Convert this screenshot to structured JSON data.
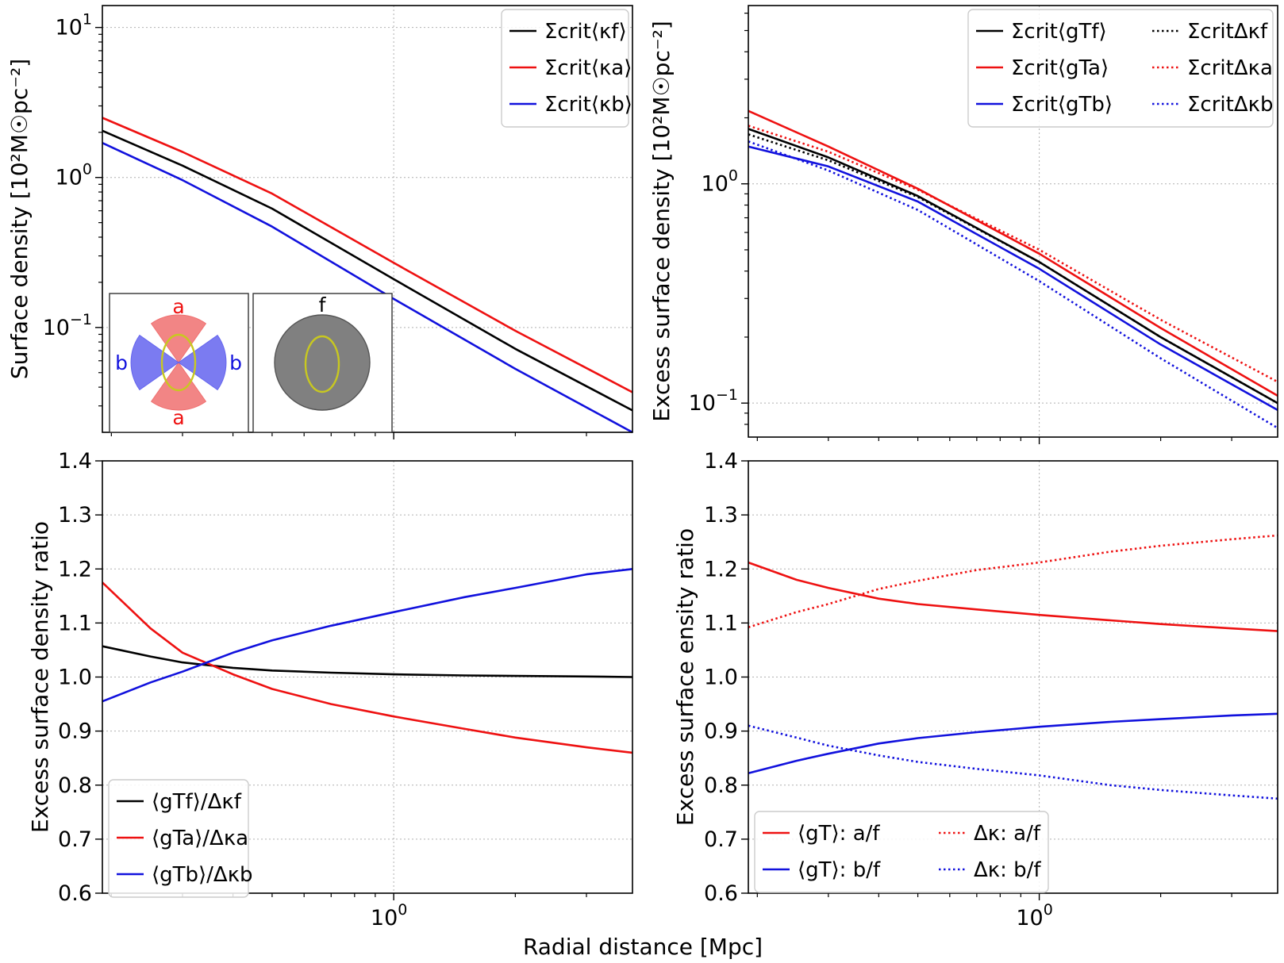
{
  "figure": {
    "xlabel": "Radial distance [Mpc]"
  },
  "colors": {
    "f": "#000000",
    "a": "#ee1111",
    "b": "#1111dd",
    "grid": "#b0b0b0",
    "wedge_a": "#f07070",
    "wedge_b": "#6464ee",
    "disk": "#808080",
    "ellipse": "#c8c820"
  },
  "chart_data": [
    {
      "id": "tl",
      "type": "line",
      "yscale": "log",
      "ylabel": "Surface density [10²M☉pc⁻²]",
      "xlim": [
        0.19,
        3.9
      ],
      "ylim": [
        0.02,
        14
      ],
      "yticks": [
        {
          "v": 10,
          "b": "10",
          "e": "1"
        },
        {
          "v": 1,
          "b": "10",
          "e": "0"
        },
        {
          "v": 0.1,
          "b": "10",
          "e": "−1"
        }
      ],
      "xticks": [],
      "x": [
        0.19,
        0.3,
        0.5,
        1.0,
        2.0,
        3.9
      ],
      "series": [
        {
          "key": "f",
          "name": "Σcrit⟨κf⟩",
          "color": "f",
          "dash": "solid",
          "values": [
            2.05,
            1.2,
            0.62,
            0.21,
            0.072,
            0.028
          ]
        },
        {
          "key": "a",
          "name": "Σcrit⟨κa⟩",
          "color": "a",
          "dash": "solid",
          "values": [
            2.5,
            1.48,
            0.78,
            0.27,
            0.095,
            0.037
          ]
        },
        {
          "key": "b",
          "name": "Σcrit⟨κb⟩",
          "color": "b",
          "dash": "solid",
          "values": [
            1.7,
            0.96,
            0.47,
            0.155,
            0.053,
            0.02
          ]
        }
      ],
      "legend": {
        "position": "top-right",
        "columns": 1
      },
      "inset": {
        "labels": {
          "a_top": "a",
          "a_bottom": "a",
          "b_left": "b",
          "b_right": "b",
          "f": "f"
        }
      }
    },
    {
      "id": "tr",
      "type": "line",
      "yscale": "log",
      "ylabel": "Excess surface density [10²M☉pc⁻²]",
      "xlim": [
        0.19,
        3.9
      ],
      "ylim": [
        0.07,
        6.5
      ],
      "yticks": [
        {
          "v": 1,
          "b": "10",
          "e": "0"
        },
        {
          "v": 0.1,
          "b": "10",
          "e": "−1"
        }
      ],
      "xticks": [],
      "x": [
        0.19,
        0.3,
        0.5,
        1.0,
        2.0,
        3.9
      ],
      "series": [
        {
          "key": "gf",
          "name": "Σcrit⟨gTf⟩",
          "color": "f",
          "dash": "solid",
          "values": [
            1.78,
            1.32,
            0.88,
            0.44,
            0.2,
            0.1
          ]
        },
        {
          "key": "ga",
          "name": "Σcrit⟨gTa⟩",
          "color": "a",
          "dash": "solid",
          "values": [
            2.15,
            1.48,
            0.95,
            0.48,
            0.22,
            0.108
          ]
        },
        {
          "key": "gb",
          "name": "Σcrit⟨gTb⟩",
          "color": "b",
          "dash": "solid",
          "values": [
            1.48,
            1.2,
            0.83,
            0.41,
            0.185,
            0.093
          ]
        },
        {
          "key": "kf",
          "name": "ΣcritΔκf",
          "color": "f",
          "dash": "dot",
          "values": [
            1.68,
            1.28,
            0.87,
            0.44,
            0.2,
            0.1
          ]
        },
        {
          "key": "ka",
          "name": "ΣcritΔκa",
          "color": "a",
          "dash": "dot",
          "values": [
            1.84,
            1.4,
            0.94,
            0.5,
            0.24,
            0.125
          ]
        },
        {
          "key": "kb",
          "name": "ΣcritΔκb",
          "color": "b",
          "dash": "dot",
          "values": [
            1.56,
            1.15,
            0.76,
            0.36,
            0.16,
            0.077
          ]
        }
      ],
      "legend": {
        "position": "top-right",
        "columns": 2
      }
    },
    {
      "id": "bl",
      "type": "line",
      "yscale": "linear",
      "ylabel": "Excess surface density ratio",
      "xlim": [
        0.19,
        3.9
      ],
      "ylim": [
        0.6,
        1.4
      ],
      "yticks": [
        {
          "v": 1.4,
          "t": "1.4"
        },
        {
          "v": 1.3,
          "t": "1.3"
        },
        {
          "v": 1.2,
          "t": "1.2"
        },
        {
          "v": 1.1,
          "t": "1.1"
        },
        {
          "v": 1.0,
          "t": "1.0"
        },
        {
          "v": 0.9,
          "t": "0.9"
        },
        {
          "v": 0.8,
          "t": "0.8"
        },
        {
          "v": 0.7,
          "t": "0.7"
        },
        {
          "v": 0.6,
          "t": "0.6"
        }
      ],
      "xticks": [
        {
          "v": 1,
          "b": "10",
          "e": "0"
        }
      ],
      "x": [
        0.19,
        0.25,
        0.3,
        0.4,
        0.5,
        0.7,
        1.0,
        1.5,
        2.0,
        3.0,
        3.9
      ],
      "series": [
        {
          "key": "f",
          "name": "⟨gTf⟩/Δκf",
          "color": "f",
          "dash": "solid",
          "values": [
            1.057,
            1.038,
            1.027,
            1.017,
            1.012,
            1.008,
            1.005,
            1.003,
            1.002,
            1.001,
            1.0
          ]
        },
        {
          "key": "a",
          "name": "⟨gTa⟩/Δκa",
          "color": "a",
          "dash": "solid",
          "values": [
            1.175,
            1.09,
            1.045,
            1.005,
            0.978,
            0.95,
            0.927,
            0.904,
            0.888,
            0.87,
            0.86
          ]
        },
        {
          "key": "b",
          "name": "⟨gTb⟩/Δκb",
          "color": "b",
          "dash": "solid",
          "values": [
            0.955,
            0.99,
            1.01,
            1.045,
            1.068,
            1.095,
            1.12,
            1.148,
            1.165,
            1.19,
            1.2
          ]
        }
      ],
      "legend": {
        "position": "bottom-left",
        "columns": 1
      }
    },
    {
      "id": "br",
      "type": "line",
      "yscale": "linear",
      "ylabel": "Excess surface ensity ratio",
      "xlim": [
        0.19,
        3.9
      ],
      "ylim": [
        0.6,
        1.4
      ],
      "yticks": [
        {
          "v": 1.4,
          "t": "1.4"
        },
        {
          "v": 1.3,
          "t": "1.3"
        },
        {
          "v": 1.2,
          "t": "1.2"
        },
        {
          "v": 1.1,
          "t": "1.1"
        },
        {
          "v": 1.0,
          "t": "1.0"
        },
        {
          "v": 0.9,
          "t": "0.9"
        },
        {
          "v": 0.8,
          "t": "0.8"
        },
        {
          "v": 0.7,
          "t": "0.7"
        },
        {
          "v": 0.6,
          "t": "0.6"
        }
      ],
      "xticks": [
        {
          "v": 1,
          "b": "10",
          "e": "0"
        }
      ],
      "x": [
        0.19,
        0.25,
        0.3,
        0.4,
        0.5,
        0.7,
        1.0,
        1.5,
        2.0,
        3.0,
        3.9
      ],
      "series": [
        {
          "key": "ga",
          "name": "⟨gT⟩: a/f",
          "color": "a",
          "dash": "solid",
          "values": [
            1.212,
            1.18,
            1.165,
            1.145,
            1.135,
            1.125,
            1.115,
            1.105,
            1.098,
            1.09,
            1.085
          ]
        },
        {
          "key": "gb",
          "name": "⟨gT⟩: b/f",
          "color": "b",
          "dash": "solid",
          "values": [
            0.822,
            0.845,
            0.858,
            0.877,
            0.887,
            0.898,
            0.908,
            0.917,
            0.922,
            0.929,
            0.932
          ]
        },
        {
          "key": "ka",
          "name": "Δκ: a/f",
          "color": "a",
          "dash": "dot",
          "values": [
            1.092,
            1.12,
            1.135,
            1.163,
            1.178,
            1.198,
            1.212,
            1.232,
            1.243,
            1.255,
            1.262
          ]
        },
        {
          "key": "kb",
          "name": "Δκ: b/f",
          "color": "b",
          "dash": "dot",
          "values": [
            0.91,
            0.888,
            0.873,
            0.855,
            0.843,
            0.83,
            0.818,
            0.8,
            0.791,
            0.781,
            0.775
          ]
        }
      ],
      "legend": {
        "position": "bottom-left",
        "columns": 2
      }
    }
  ]
}
